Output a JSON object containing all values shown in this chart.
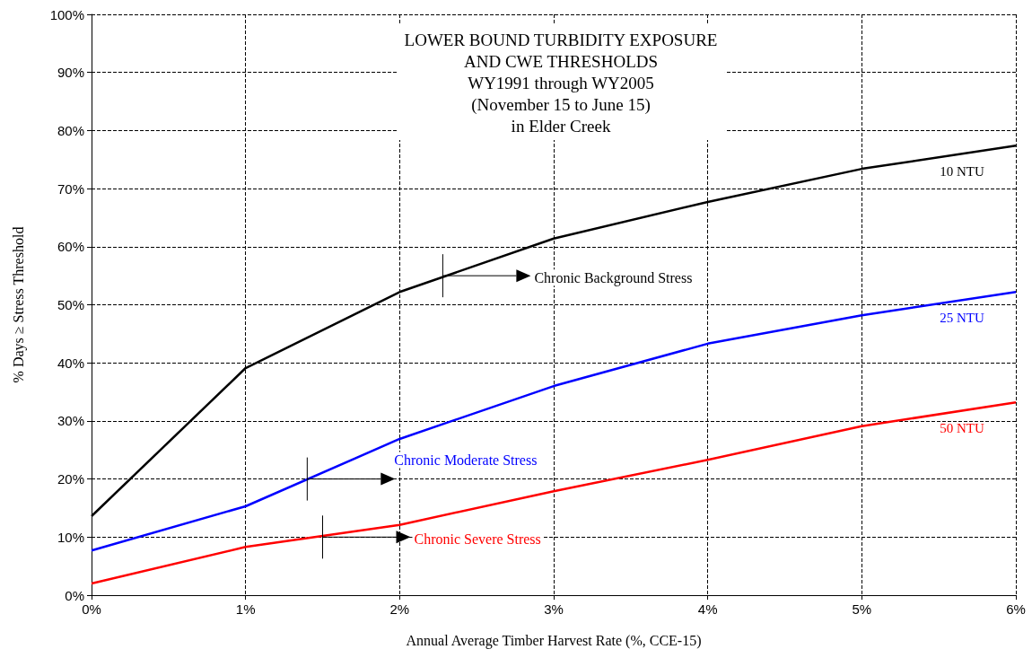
{
  "chart_data": {
    "type": "line",
    "title": "LOWER BOUND TURBIDITY EXPOSURE\nAND CWE THRESHOLDS\nWY1991 through WY2005\n(November 15 to June 15)\nin Elder Creek",
    "xlabel": "Annual Average Timber Harvest Rate (%, CCE-15)",
    "ylabel": "% Days ≥ Stress Threshold",
    "x": [
      0,
      1,
      2,
      3,
      4,
      5,
      6
    ],
    "series": [
      {
        "name": "10 NTU",
        "color": "#000000",
        "values": [
          13.6,
          39.1,
          52.2,
          61.4,
          67.7,
          73.4,
          77.4
        ]
      },
      {
        "name": "25 NTU",
        "color": "#0000ff",
        "values": [
          7.7,
          15.3,
          26.9,
          36.0,
          43.3,
          48.2,
          52.2
        ]
      },
      {
        "name": "50 NTU",
        "color": "#ff0000",
        "values": [
          2.0,
          8.3,
          12.1,
          17.9,
          23.3,
          29.1,
          33.2
        ]
      }
    ],
    "annotations": [
      {
        "text": "Chronic Background Stress",
        "x": 2.28,
        "y": 55
      },
      {
        "text": "Chronic Moderate Stress",
        "x": 1.4,
        "y": 20
      },
      {
        "text": "Chronic Severe Stress",
        "x": 1.5,
        "y": 10
      }
    ],
    "xlim": [
      0,
      6
    ],
    "xticks": [
      {
        "value": 0,
        "label": "0%"
      },
      {
        "value": 1,
        "label": "1%"
      },
      {
        "value": 2,
        "label": "2%"
      },
      {
        "value": 3,
        "label": "3%"
      },
      {
        "value": 4,
        "label": "4%"
      },
      {
        "value": 5,
        "label": "5%"
      },
      {
        "value": 6,
        "label": "6%"
      }
    ],
    "ylim": [
      0,
      100
    ],
    "yticks": [
      {
        "value": 0,
        "label": "0%"
      },
      {
        "value": 10,
        "label": "10%"
      },
      {
        "value": 20,
        "label": "20%"
      },
      {
        "value": 30,
        "label": "30%"
      },
      {
        "value": 40,
        "label": "40%"
      },
      {
        "value": 50,
        "label": "50%"
      },
      {
        "value": 60,
        "label": "60%"
      },
      {
        "value": 70,
        "label": "70%"
      },
      {
        "value": 80,
        "label": "80%"
      },
      {
        "value": 90,
        "label": "90%"
      },
      {
        "value": 100,
        "label": "100%"
      }
    ],
    "grid": true,
    "legend": false,
    "marker": "none",
    "line_style": "solid"
  }
}
